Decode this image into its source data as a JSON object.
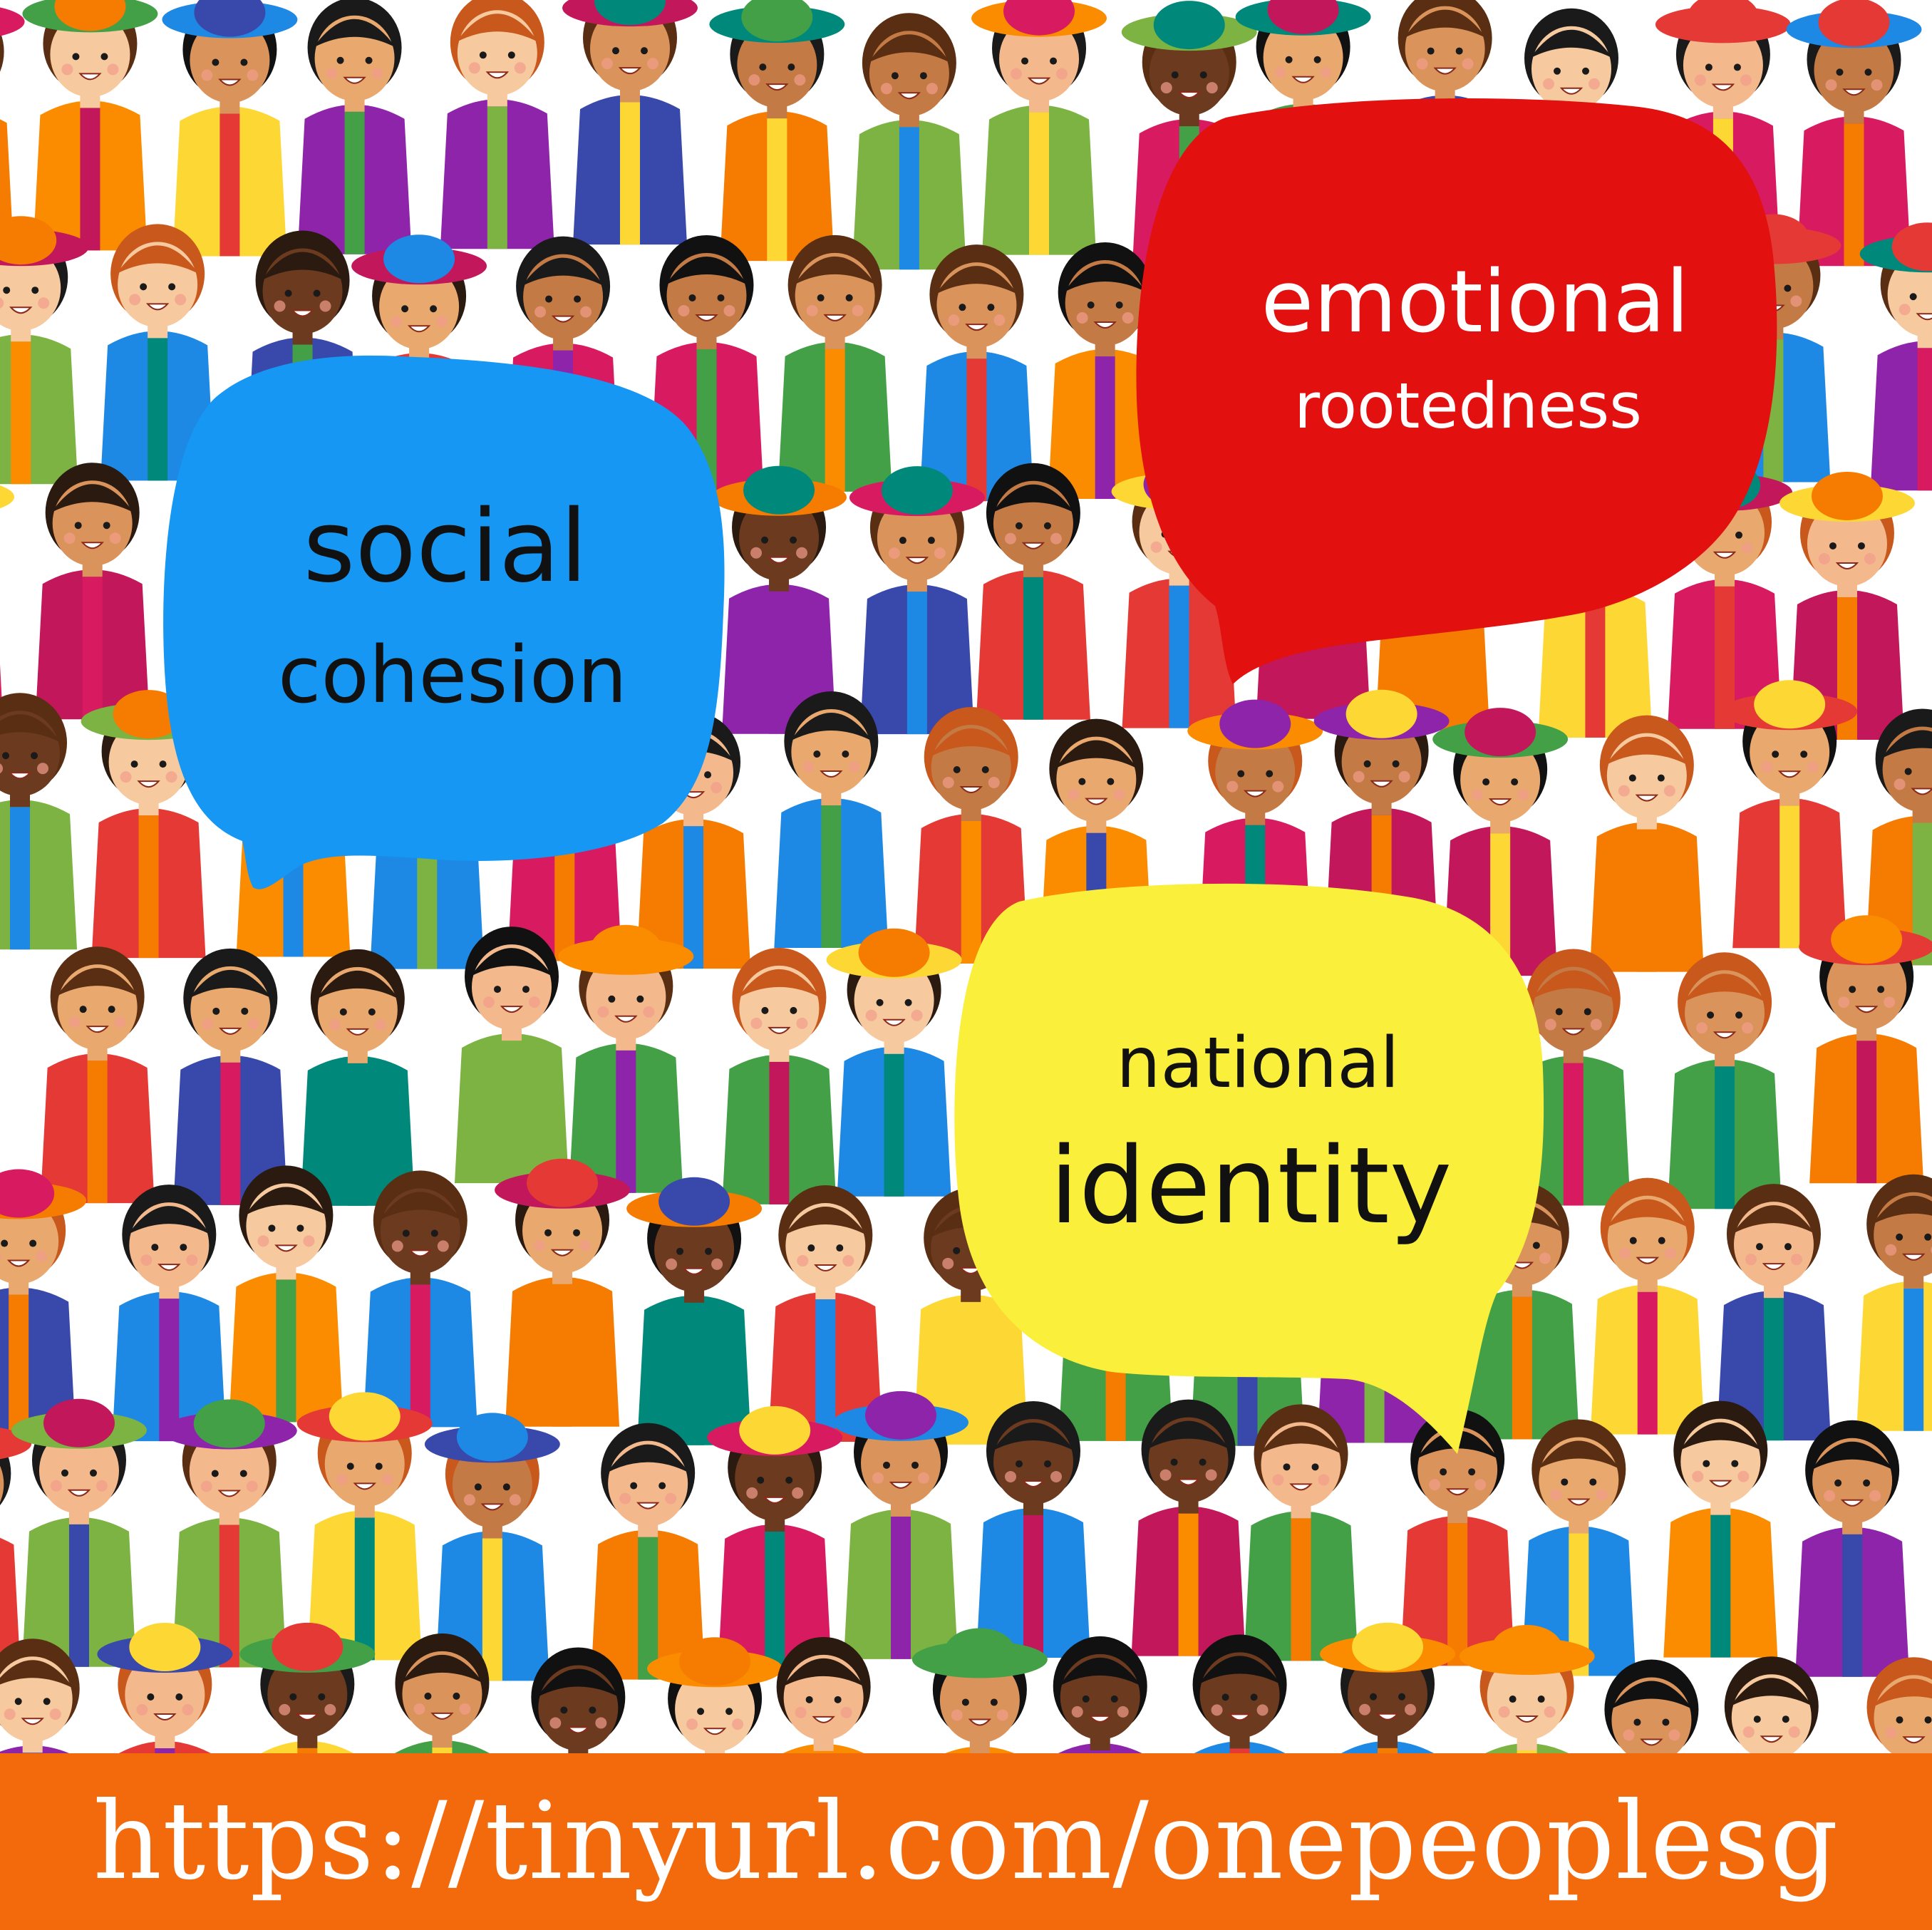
{
  "colors": {
    "banner": "#F26A0C",
    "bubble_social": "#1597F3",
    "bubble_emotional": "#E2100E",
    "bubble_national": "#FAF03C",
    "text_dark": "#111111",
    "text_light": "#FFFFFF"
  },
  "palette": [
    "#E53935",
    "#F57C00",
    "#FDD835",
    "#7CB342",
    "#00897B",
    "#1E88E5",
    "#8E24AA",
    "#C2185B",
    "#43A047",
    "#FB8C00",
    "#D81B60",
    "#3949AB"
  ],
  "skin_tones": [
    "#F7C99E",
    "#E8A86E",
    "#C47A45",
    "#6B3A1F",
    "#F3B98C",
    "#D9935B"
  ],
  "hair_tones": [
    "#1A1A1A",
    "#2B1A10",
    "#5A2E12",
    "#C8581C",
    "#111111"
  ],
  "bubbles": {
    "social": {
      "line1": "social",
      "line2": "cohesion"
    },
    "emotional": {
      "line1": "emotional",
      "line2": "rootedness"
    },
    "national": {
      "line1": "national",
      "line2": "identity"
    }
  },
  "banner": {
    "url": "https://tinyurl.com/onepeoplesg"
  }
}
